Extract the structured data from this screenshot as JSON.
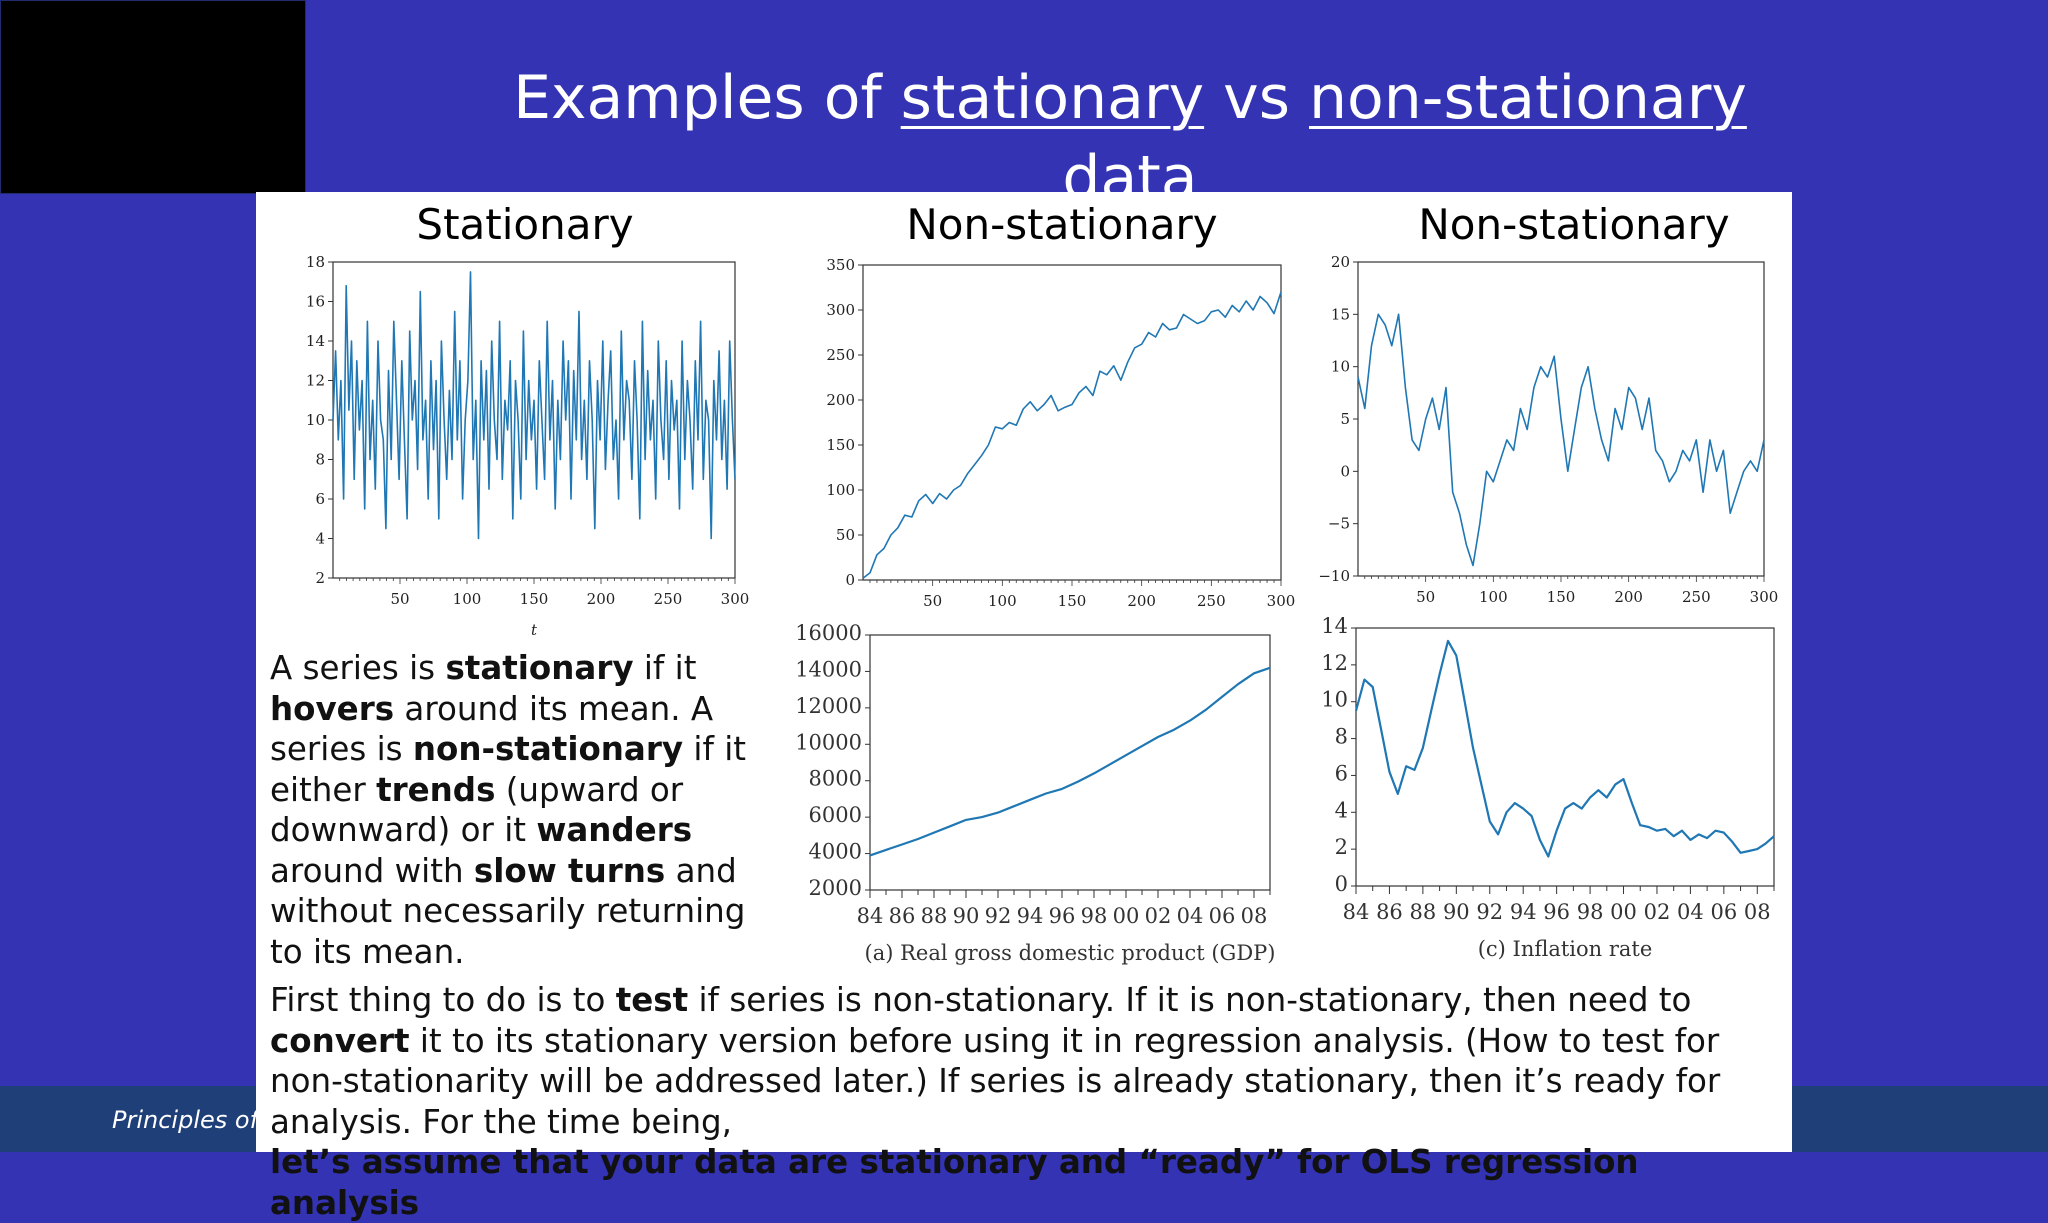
{
  "slide": {
    "title_parts": [
      "Examples of ",
      "stationary",
      " vs ",
      "non-stationary",
      " data"
    ],
    "footer": "Principles of E",
    "background_color": "#3333b3",
    "footer_color": "#1f3f78"
  },
  "headings": {
    "stationary": "Stationary",
    "nonstationary_1": "Non-stationary",
    "nonstationary_2": "Non-stationary"
  },
  "text": {
    "left_parts": [
      {
        "t": "A series is ",
        "b": false
      },
      {
        "t": "stationary",
        "b": true
      },
      {
        "t": " if it ",
        "b": false
      },
      {
        "t": "hovers",
        "b": true
      },
      {
        "t": " around its mean. ",
        "b": false
      },
      {
        "t": "A series is ",
        "b": false
      },
      {
        "t": "non-stationary",
        "b": true
      },
      {
        "t": " if it either ",
        "b": false
      },
      {
        "t": "trends",
        "b": true
      },
      {
        "t": " (upward or downward) or it ",
        "b": false
      },
      {
        "t": "wanders",
        "b": true
      },
      {
        "t": " around with ",
        "b": false
      },
      {
        "t": "slow turns",
        "b": true
      },
      {
        "t": " and without necessarily returning to its mean.",
        "b": false
      }
    ],
    "bottom_parts": [
      {
        "t": "First thing to do is to ",
        "b": false
      },
      {
        "t": "test",
        "b": true
      },
      {
        "t": " if series is non-stationary. If it is non-stationary, then need to ",
        "b": false
      },
      {
        "t": "convert",
        "b": true
      },
      {
        "t": " it to its stationary version before using it in regression analysis. (How to test for non-stationarity will be addressed later.)  If series is already stationary, then it’s ready for analysis. For the time being,",
        "b": false
      }
    ],
    "bottom_bold": "let’s assume that your data are stationary and “ready” for OLS regression analysis"
  },
  "chart_data": [
    {
      "type": "line",
      "title": "Stationary",
      "xlabel": "t",
      "ylabel": "",
      "xlim": [
        0,
        300
      ],
      "ylim": [
        2,
        18
      ],
      "xticks": [
        50,
        100,
        150,
        200,
        250,
        300
      ],
      "yticks": [
        2,
        4,
        6,
        8,
        10,
        12,
        14,
        16,
        18
      ],
      "color": "#1f77b4",
      "series": [
        {
          "values": [
            10,
            13.5,
            9,
            12,
            6,
            16.8,
            10.5,
            14,
            7,
            13,
            9.5,
            12,
            5.5,
            15,
            8,
            11,
            6.5,
            14,
            10,
            9,
            4.5,
            12.5,
            8,
            15,
            11,
            7,
            13,
            9,
            5,
            14.5,
            10,
            12,
            7.5,
            16.5,
            9,
            11,
            6,
            13,
            8.5,
            12,
            5,
            14,
            10,
            7,
            11.5,
            8,
            15.5,
            9,
            13,
            6,
            10,
            12,
            17.5,
            8,
            11,
            4,
            13,
            9,
            12.5,
            6.5,
            14,
            10,
            8,
            15,
            7,
            11,
            9.5,
            13,
            5,
            12,
            10,
            6,
            14.5,
            8,
            12,
            9,
            11,
            6.5,
            13,
            10,
            7,
            15,
            9,
            12,
            5.5,
            11,
            8,
            14,
            10,
            13,
            6,
            12.5,
            9,
            15.5,
            8,
            11,
            7,
            13,
            10,
            4.5,
            12,
            9,
            14,
            7.5,
            11,
            13.5,
            8,
            10,
            6,
            14.5,
            9,
            12,
            11,
            7,
            13,
            10,
            5,
            15,
            8,
            12.5,
            9,
            11,
            6,
            14,
            10,
            8,
            13,
            7,
            12,
            9.5,
            11,
            5.5,
            14,
            8,
            12,
            10,
            6.5,
            13,
            9,
            15,
            7,
            11,
            10,
            4,
            12,
            9,
            13.5,
            8,
            11,
            6.5,
            14,
            10,
            7
          ]
        }
      ]
    },
    {
      "type": "line",
      "title": "Non-stationary",
      "xlabel": "",
      "ylabel": "",
      "xlim": [
        0,
        300
      ],
      "ylim": [
        0,
        350
      ],
      "xticks": [
        50,
        100,
        150,
        200,
        250,
        300
      ],
      "yticks": [
        0,
        50,
        100,
        150,
        200,
        250,
        300,
        350
      ],
      "color": "#1f77b4",
      "series": [
        {
          "x": [
            0,
            5,
            10,
            15,
            20,
            25,
            30,
            35,
            40,
            45,
            50,
            55,
            60,
            65,
            70,
            75,
            80,
            85,
            90,
            95,
            100,
            105,
            110,
            115,
            120,
            125,
            130,
            135,
            140,
            145,
            150,
            155,
            160,
            165,
            170,
            175,
            180,
            185,
            190,
            195,
            200,
            205,
            210,
            215,
            220,
            225,
            230,
            235,
            240,
            245,
            250,
            255,
            260,
            265,
            270,
            275,
            280,
            285,
            290,
            295,
            300
          ],
          "values": [
            2,
            8,
            28,
            35,
            50,
            58,
            72,
            70,
            88,
            95,
            85,
            96,
            90,
            100,
            105,
            118,
            128,
            138,
            150,
            170,
            168,
            175,
            172,
            190,
            198,
            188,
            195,
            205,
            188,
            192,
            195,
            208,
            215,
            205,
            232,
            228,
            238,
            222,
            242,
            258,
            262,
            275,
            270,
            285,
            278,
            280,
            295,
            290,
            285,
            288,
            298,
            300,
            292,
            305,
            298,
            310,
            300,
            315,
            308,
            296,
            320
          ]
        }
      ]
    },
    {
      "type": "line",
      "title": "Non-stationary",
      "xlabel": "",
      "ylabel": "",
      "xlim": [
        0,
        300
      ],
      "ylim": [
        -10,
        20
      ],
      "xticks": [
        50,
        100,
        150,
        200,
        250,
        300
      ],
      "yticks": [
        -10,
        -5,
        0,
        5,
        10,
        15,
        20
      ],
      "color": "#1f77b4",
      "series": [
        {
          "x": [
            0,
            5,
            10,
            15,
            20,
            25,
            30,
            35,
            40,
            45,
            50,
            55,
            60,
            65,
            70,
            75,
            80,
            85,
            90,
            95,
            100,
            105,
            110,
            115,
            120,
            125,
            130,
            135,
            140,
            145,
            150,
            155,
            160,
            165,
            170,
            175,
            180,
            185,
            190,
            195,
            200,
            205,
            210,
            215,
            220,
            225,
            230,
            235,
            240,
            245,
            250,
            255,
            260,
            265,
            270,
            275,
            280,
            285,
            290,
            295,
            300
          ],
          "values": [
            9,
            6,
            12,
            15,
            14,
            12,
            15,
            8,
            3,
            2,
            5,
            7,
            4,
            8,
            -2,
            -4,
            -7,
            -9,
            -5,
            0,
            -1,
            1,
            3,
            2,
            6,
            4,
            8,
            10,
            9,
            11,
            5,
            0,
            4,
            8,
            10,
            6,
            3,
            1,
            6,
            4,
            8,
            7,
            4,
            7,
            2,
            1,
            -1,
            0,
            2,
            1,
            3,
            -2,
            3,
            0,
            2,
            -4,
            -2,
            0,
            1,
            0,
            3
          ]
        }
      ]
    },
    {
      "type": "line",
      "title": "",
      "xlabel": "",
      "ylabel": "",
      "caption": "(a) Real gross domestic product (GDP)",
      "xlim": [
        1984,
        2009
      ],
      "ylim": [
        2000,
        16000
      ],
      "xtick_labels": [
        "84",
        "86",
        "88",
        "90",
        "92",
        "94",
        "96",
        "98",
        "00",
        "02",
        "04",
        "06",
        "08"
      ],
      "yticks": [
        2000,
        4000,
        6000,
        8000,
        10000,
        12000,
        14000,
        16000
      ],
      "color": "#1f77b4",
      "series": [
        {
          "x": [
            1984,
            1985,
            1986,
            1987,
            1988,
            1989,
            1990,
            1991,
            1992,
            1993,
            1994,
            1995,
            1996,
            1997,
            1998,
            1999,
            2000,
            2001,
            2002,
            2003,
            2004,
            2005,
            2006,
            2007,
            2008,
            2009
          ],
          "values": [
            3900,
            4200,
            4500,
            4800,
            5150,
            5500,
            5850,
            6000,
            6250,
            6600,
            6950,
            7300,
            7550,
            7950,
            8400,
            8900,
            9400,
            9900,
            10400,
            10800,
            11300,
            11900,
            12600,
            13300,
            13900,
            14200
          ]
        }
      ]
    },
    {
      "type": "line",
      "title": "",
      "xlabel": "",
      "ylabel": "",
      "caption": "(c) Inflation rate",
      "xlim": [
        1984,
        2009
      ],
      "ylim": [
        0,
        14
      ],
      "xtick_labels": [
        "84",
        "86",
        "88",
        "90",
        "92",
        "94",
        "96",
        "98",
        "00",
        "02",
        "04",
        "06",
        "08"
      ],
      "yticks": [
        0,
        2,
        4,
        6,
        8,
        10,
        12,
        14
      ],
      "color": "#1f77b4",
      "series": [
        {
          "x": [
            1984,
            1984.5,
            1985,
            1985.5,
            1986,
            1986.5,
            1987,
            1987.5,
            1988,
            1988.5,
            1989,
            1989.5,
            1990,
            1990.5,
            1991,
            1991.5,
            1992,
            1992.5,
            1993,
            1993.5,
            1994,
            1994.5,
            1995,
            1995.5,
            1996,
            1996.5,
            1997,
            1997.5,
            1998,
            1998.5,
            1999,
            1999.5,
            2000,
            2000.5,
            2001,
            2001.5,
            2002,
            2002.5,
            2003,
            2003.5,
            2004,
            2004.5,
            2005,
            2005.5,
            2006,
            2006.5,
            2007,
            2007.5,
            2008,
            2008.5,
            2009
          ],
          "values": [
            9.5,
            11.2,
            10.8,
            8.5,
            6.2,
            5,
            6.5,
            6.3,
            7.5,
            9.5,
            11.5,
            13.3,
            12.5,
            10,
            7.5,
            5.5,
            3.5,
            2.8,
            4,
            4.5,
            4.2,
            3.8,
            2.5,
            1.6,
            3,
            4.2,
            4.5,
            4.2,
            4.8,
            5.2,
            4.8,
            5.5,
            5.8,
            4.5,
            3.3,
            3.2,
            3,
            3.1,
            2.7,
            3,
            2.5,
            2.8,
            2.6,
            3,
            2.9,
            2.4,
            1.8,
            1.9,
            2.0,
            2.3,
            2.7
          ]
        }
      ]
    }
  ]
}
